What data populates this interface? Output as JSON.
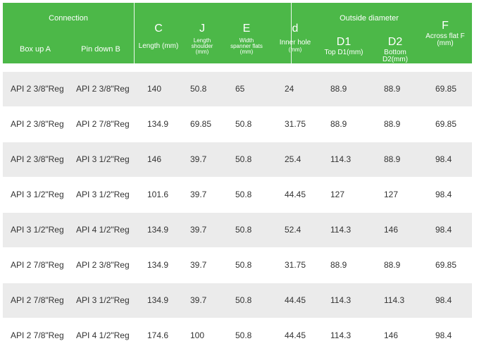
{
  "header": {
    "connection": "Connection",
    "box_up": "Box up A",
    "pin_down": "Pin down B",
    "c_letter": "C",
    "c_label": "Length (mm)",
    "j_letter": "J",
    "j_label_1": "Length",
    "j_label_2": "shoulder",
    "j_label_3": "(mm)",
    "e_letter": "E",
    "e_label_1": "Width",
    "e_label_2": "spanner flats",
    "e_label_3": "(mm)",
    "d_letter": "d",
    "d_label_1": "Inner hole",
    "d_label_2": "(mm)",
    "outside": "Outside diameter",
    "d1_letter": "D1",
    "d1_label": "Top D1(mm)",
    "d2_letter": "D2",
    "d2_label_1": "Bottom",
    "d2_label_2": "D2(mm)",
    "f_letter": "F",
    "f_label_1": "Across flat F",
    "f_label_2": "(mm)"
  },
  "rows": [
    [
      "API 2 3/8\"Reg",
      "API 2 3/8\"Reg",
      "140",
      "50.8",
      "65",
      "24",
      "88.9",
      "88.9",
      "69.85"
    ],
    [
      "API 2 3/8\"Reg",
      "API 2 7/8\"Reg",
      "134.9",
      "69.85",
      "50.8",
      "31.75",
      "88.9",
      "88.9",
      "69.85"
    ],
    [
      "API 2 3/8\"Reg",
      "API 3 1/2\"Reg",
      "146",
      "39.7",
      "50.8",
      "25.4",
      "114.3",
      "88.9",
      "98.4"
    ],
    [
      "API 3 1/2\"Reg",
      "API 3 1/2\"Reg",
      "101.6",
      "39.7",
      "50.8",
      "44.45",
      "127",
      "127",
      "98.4"
    ],
    [
      "API 3 1/2\"Reg",
      "API 4 1/2\"Reg",
      "134.9",
      "39.7",
      "50.8",
      "52.4",
      "114.3",
      "146",
      "98.4"
    ],
    [
      "API 2 7/8\"Reg",
      "API 2 3/8\"Reg",
      "134.9",
      "39.7",
      "50.8",
      "31.75",
      "88.9",
      "88.9",
      "69.85"
    ],
    [
      "API 2 7/8\"Reg",
      "API 3 1/2\"Reg",
      "134.9",
      "39.7",
      "50.8",
      "44.45",
      "114.3",
      "114.3",
      "98.4"
    ],
    [
      "API 2 7/8\"Reg",
      "API 4 1/2\"Reg",
      "174.6",
      "100",
      "50.8",
      "44.45",
      "114.3",
      "146",
      "98.4"
    ]
  ],
  "colors": {
    "header_bg": "#4cb848",
    "row_shade": "#ebebeb",
    "text": "#333333"
  }
}
